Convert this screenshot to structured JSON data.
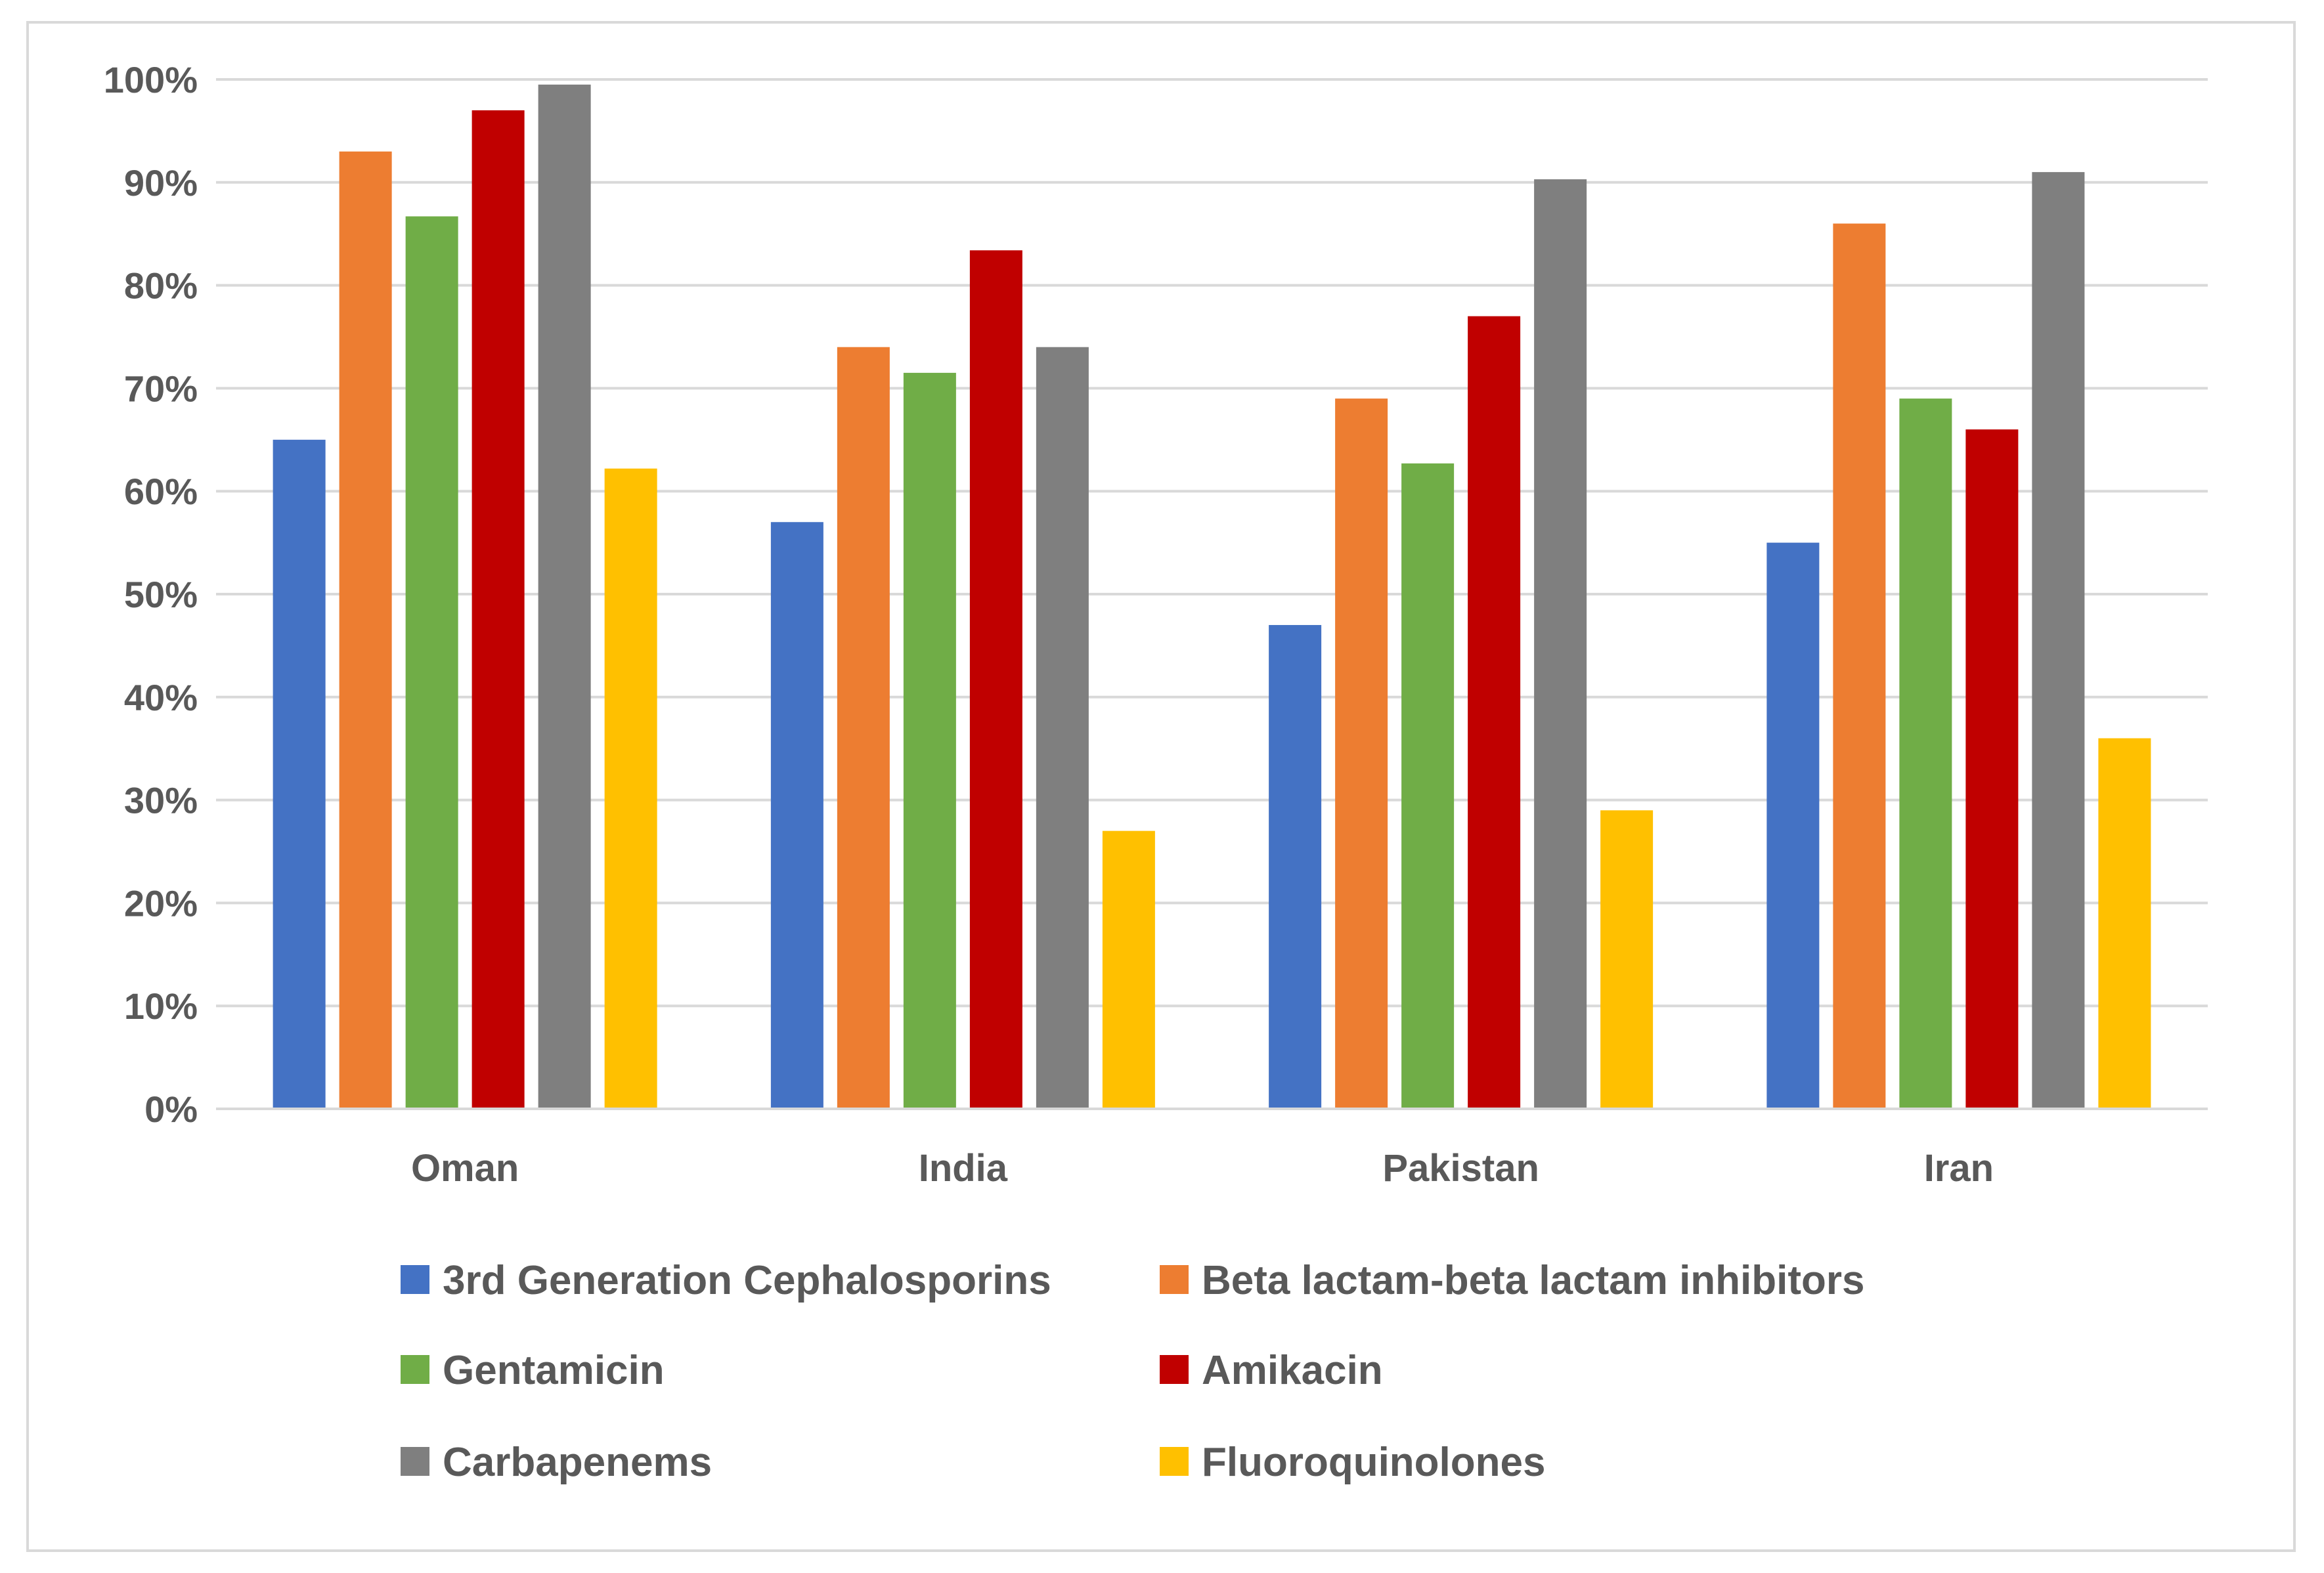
{
  "chart_data": {
    "type": "bar",
    "title": "",
    "xlabel": "",
    "ylabel": "",
    "ylim": [
      0,
      1
    ],
    "y_ticks": [
      {
        "value": 0.0,
        "label": "0%"
      },
      {
        "value": 0.1,
        "label": "10%"
      },
      {
        "value": 0.2,
        "label": "20%"
      },
      {
        "value": 0.3,
        "label": "30%"
      },
      {
        "value": 0.4,
        "label": "40%"
      },
      {
        "value": 0.5,
        "label": "50%"
      },
      {
        "value": 0.6,
        "label": "60%"
      },
      {
        "value": 0.7,
        "label": "70%"
      },
      {
        "value": 0.8,
        "label": "80%"
      },
      {
        "value": 0.9,
        "label": "90%"
      },
      {
        "value": 1.0,
        "label": "100%"
      }
    ],
    "grid": true,
    "legend_position": "bottom",
    "categories": [
      "Oman",
      "India",
      "Pakistan",
      "Iran"
    ],
    "series": [
      {
        "name": "3rd Generation Cephalosporins",
        "color": "#4472c4",
        "values": [
          0.65,
          0.57,
          0.47,
          0.55
        ]
      },
      {
        "name": "Beta lactam-beta lactam inhibitors",
        "color": "#ed7d31",
        "values": [
          0.93,
          0.74,
          0.69,
          0.86
        ]
      },
      {
        "name": "Gentamicin",
        "color": "#70ad47",
        "values": [
          0.867,
          0.715,
          0.627,
          0.69
        ]
      },
      {
        "name": "Amikacin",
        "color": "#c00000",
        "values": [
          0.97,
          0.834,
          0.77,
          0.66
        ]
      },
      {
        "name": "Carbapenems",
        "color": "#7f7f7f",
        "values": [
          0.995,
          0.74,
          0.903,
          0.91
        ]
      },
      {
        "name": "Fluoroquinolones",
        "color": "#ffc000",
        "values": [
          0.622,
          0.27,
          0.29,
          0.36
        ]
      }
    ]
  }
}
